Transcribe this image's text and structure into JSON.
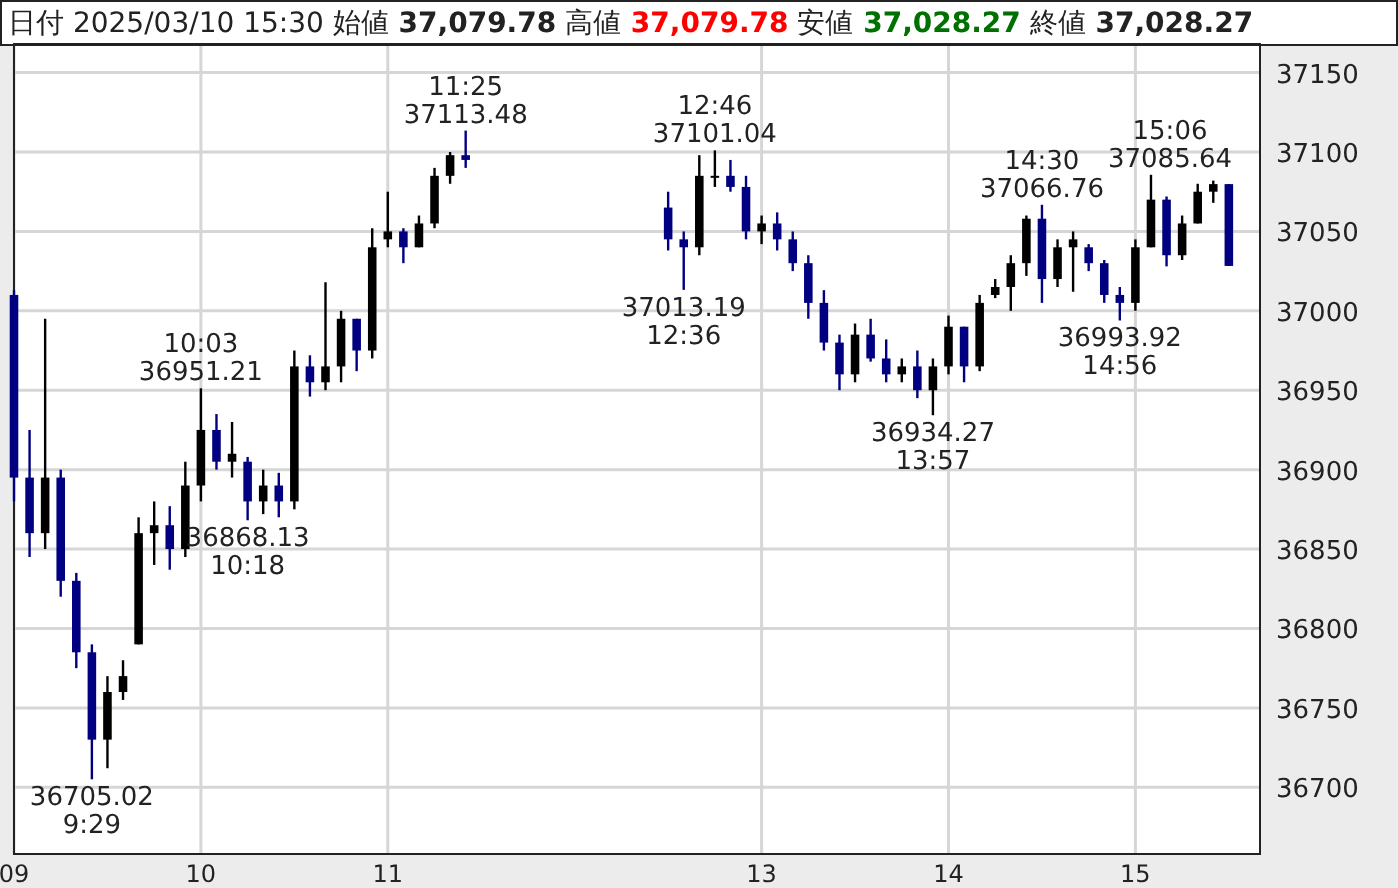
{
  "chart_data": {
    "type": "candlestick",
    "title": "日付 2025/03/10 15:30 始値 37,079.78 高値 37,079.78 安値 37,028.27 終値 37,028.27",
    "x": [
      "2025-03-10T09:00",
      "2025-03-10T09:05",
      "2025-03-10T09:10",
      "2025-03-10T09:15",
      "2025-03-10T09:20",
      "2025-03-10T09:25",
      "2025-03-10T09:30",
      "2025-03-10T09:35",
      "2025-03-10T09:40",
      "2025-03-10T09:45",
      "2025-03-10T09:50",
      "2025-03-10T09:55",
      "2025-03-10T10:00",
      "2025-03-10T10:05",
      "2025-03-10T10:10",
      "2025-03-10T10:15",
      "2025-03-10T10:20",
      "2025-03-10T10:25",
      "2025-03-10T10:30",
      "2025-03-10T10:35",
      "2025-03-10T10:40",
      "2025-03-10T10:45",
      "2025-03-10T10:50",
      "2025-03-10T10:55",
      "2025-03-10T11:00",
      "2025-03-10T11:05",
      "2025-03-10T11:10",
      "2025-03-10T11:15",
      "2025-03-10T11:20",
      "2025-03-10T11:25",
      "2025-03-10T12:30",
      "2025-03-10T12:35",
      "2025-03-10T12:40",
      "2025-03-10T12:45",
      "2025-03-10T12:50",
      "2025-03-10T12:55",
      "2025-03-10T13:00",
      "2025-03-10T13:05",
      "2025-03-10T13:10",
      "2025-03-10T13:15",
      "2025-03-10T13:20",
      "2025-03-10T13:25",
      "2025-03-10T13:30",
      "2025-03-10T13:35",
      "2025-03-10T13:40",
      "2025-03-10T13:45",
      "2025-03-10T13:50",
      "2025-03-10T13:55",
      "2025-03-10T14:00",
      "2025-03-10T14:05",
      "2025-03-10T14:10",
      "2025-03-10T14:15",
      "2025-03-10T14:20",
      "2025-03-10T14:25",
      "2025-03-10T14:30",
      "2025-03-10T14:35",
      "2025-03-10T14:40",
      "2025-03-10T14:45",
      "2025-03-10T14:50",
      "2025-03-10T14:55",
      "2025-03-10T15:00",
      "2025-03-10T15:05",
      "2025-03-10T15:10",
      "2025-03-10T15:15",
      "2025-03-10T15:20",
      "2025-03-10T15:25",
      "2025-03-10T15:30"
    ],
    "ohlc": [
      [
        37010,
        37013,
        36880,
        36895
      ],
      [
        36895,
        36925,
        36845,
        36860
      ],
      [
        36860,
        36995,
        36850,
        36895
      ],
      [
        36895,
        36900,
        36820,
        36830
      ],
      [
        36830,
        36835,
        36775,
        36785
      ],
      [
        36785,
        36790,
        36705.02,
        36730
      ],
      [
        36730,
        36770,
        36712,
        36760
      ],
      [
        36760,
        36780,
        36755,
        36770
      ],
      [
        36790,
        36870,
        36790,
        36860
      ],
      [
        36860,
        36880,
        36840,
        36865
      ],
      [
        36865,
        36877,
        36837,
        36850
      ],
      [
        36850,
        36905,
        36845,
        36890
      ],
      [
        36890,
        36951.21,
        36880,
        36925
      ],
      [
        36925,
        36935,
        36900,
        36905
      ],
      [
        36905,
        36930,
        36895,
        36910
      ],
      [
        36905,
        36908,
        36868.13,
        36880
      ],
      [
        36880,
        36900,
        36872,
        36890
      ],
      [
        36890,
        36898,
        36870,
        36880
      ],
      [
        36880,
        36975,
        36875,
        36965
      ],
      [
        36965,
        36972,
        36946,
        36955
      ],
      [
        36955,
        37018,
        36950,
        36965
      ],
      [
        36965,
        37000,
        36955,
        36995
      ],
      [
        36995,
        36995,
        36962,
        36975
      ],
      [
        36975,
        37052,
        36970,
        37040
      ],
      [
        37045,
        37075,
        37040,
        37050
      ],
      [
        37050,
        37052,
        37030,
        37040
      ],
      [
        37040,
        37060,
        37040,
        37055
      ],
      [
        37055,
        37090,
        37052,
        37085
      ],
      [
        37085,
        37100,
        37080,
        37098
      ],
      [
        37098,
        37113.48,
        37090,
        37095
      ],
      [
        37065,
        37075,
        37038,
        37045
      ],
      [
        37045,
        37050,
        37013.19,
        37040
      ],
      [
        37040,
        37098,
        37035,
        37085
      ],
      [
        37085,
        37101.04,
        37078,
        37085
      ],
      [
        37085,
        37095,
        37075,
        37078
      ],
      [
        37078,
        37085,
        37045,
        37050
      ],
      [
        37050,
        37060,
        37042,
        37055
      ],
      [
        37055,
        37062,
        37038,
        37045
      ],
      [
        37045,
        37050,
        37025,
        37030
      ],
      [
        37030,
        37035,
        36995,
        37005
      ],
      [
        37005,
        37013,
        36975,
        36980
      ],
      [
        36980,
        36985,
        36950,
        36960
      ],
      [
        36960,
        36992,
        36955,
        36985
      ],
      [
        36985,
        36995,
        36968,
        36970
      ],
      [
        36970,
        36982,
        36955,
        36960
      ],
      [
        36960,
        36970,
        36955,
        36965
      ],
      [
        36965,
        36975,
        36945,
        36950
      ],
      [
        36950,
        36970,
        36934.27,
        36965
      ],
      [
        36965,
        36997,
        36960,
        36990
      ],
      [
        36990,
        36990,
        36955,
        36965
      ],
      [
        36965,
        37010,
        36962,
        37005
      ],
      [
        37010,
        37020,
        37008,
        37015
      ],
      [
        37015,
        37035,
        37000,
        37030
      ],
      [
        37030,
        37060,
        37022,
        37058
      ],
      [
        37058,
        37066.76,
        37005,
        37020
      ],
      [
        37020,
        37045,
        37015,
        37040
      ],
      [
        37040,
        37050,
        37012,
        37045
      ],
      [
        37040,
        37042,
        37025,
        37030
      ],
      [
        37030,
        37032,
        37005,
        37010
      ],
      [
        37010,
        37015,
        36993.92,
        37005
      ],
      [
        37005,
        37045,
        37000,
        37040
      ],
      [
        37040,
        37085.64,
        37040,
        37070
      ],
      [
        37070,
        37072,
        37028,
        37035
      ],
      [
        37035,
        37060,
        37032,
        37055
      ],
      [
        37055,
        37080,
        37055,
        37075
      ],
      [
        37075,
        37082,
        37068,
        37079.78
      ],
      [
        37079.78,
        37079.78,
        37028.27,
        37028.27
      ]
    ],
    "colors": [
      "#000080",
      "#000080",
      "#000000",
      "#000080",
      "#000080",
      "#000080",
      "#000000",
      "#000000",
      "#000000",
      "#000000",
      "#000080",
      "#000000",
      "#000000",
      "#000080",
      "#000000",
      "#000080",
      "#000000",
      "#000080",
      "#000000",
      "#000080",
      "#000000",
      "#000000",
      "#000080",
      "#000000",
      "#000000",
      "#000080",
      "#000000",
      "#000000",
      "#000000",
      "#000080",
      "#000080",
      "#000080",
      "#000000",
      "#000000",
      "#000080",
      "#000080",
      "#000000",
      "#000080",
      "#000080",
      "#000080",
      "#000080",
      "#000080",
      "#000000",
      "#000080",
      "#000080",
      "#000000",
      "#000080",
      "#000000",
      "#000000",
      "#000080",
      "#000000",
      "#000000",
      "#000000",
      "#000000",
      "#000080",
      "#000000",
      "#000000",
      "#000080",
      "#000080",
      "#000080",
      "#000000",
      "#000000",
      "#000080",
      "#000000",
      "#000000",
      "#000000",
      "#000080"
    ],
    "xlim": [
      "2025-03-10T09:00",
      "2025-03-10T15:40"
    ],
    "xticks": [
      {
        "value": "2025-03-10T09:00",
        "label": "09"
      },
      {
        "value": "2025-03-10T10:00",
        "label": "10"
      },
      {
        "value": "2025-03-10T11:00",
        "label": "11"
      },
      {
        "value": "2025-03-10T13:00",
        "label": "13"
      },
      {
        "value": "2025-03-10T14:00",
        "label": "14"
      },
      {
        "value": "2025-03-10T15:00",
        "label": "15"
      }
    ],
    "ylim": [
      36658,
      37168
    ],
    "yticks": [
      36700,
      36750,
      36800,
      36850,
      36900,
      36950,
      37000,
      37050,
      37100,
      37150
    ],
    "grid": true,
    "annotations": [
      {
        "text": "36705.02\n9:29",
        "x": "2025-03-10T09:25",
        "y": 36705.02
      },
      {
        "text": "10:03\n36951.21",
        "x": "2025-03-10T10:00",
        "y": 36951.21
      },
      {
        "text": "36868.13\n10:18",
        "x": "2025-03-10T10:15",
        "y": 36868.13
      },
      {
        "text": "11:25\n37113.48",
        "x": "2025-03-10T11:25",
        "y": 37113.48
      },
      {
        "text": "37013.19\n12:36",
        "x": "2025-03-10T12:35",
        "y": 37013.19
      },
      {
        "text": "12:46\n37101.04",
        "x": "2025-03-10T12:45",
        "y": 37101.04
      },
      {
        "text": "36934.27\n13:57",
        "x": "2025-03-10T13:55",
        "y": 36934.27
      },
      {
        "text": "14:30\n37066.76",
        "x": "2025-03-10T14:30",
        "y": 37066.76
      },
      {
        "text": "36993.92\n14:56",
        "x": "2025-03-10T14:55",
        "y": 36993.92
      },
      {
        "text": "15:06\n37085.64",
        "x": "2025-03-10T15:05",
        "y": 37085.64
      }
    ]
  }
}
